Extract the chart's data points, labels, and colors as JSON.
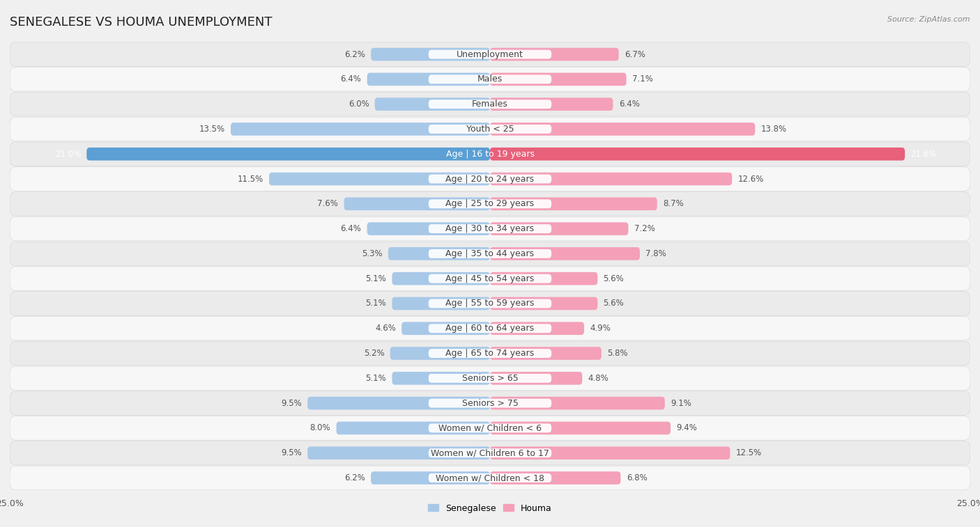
{
  "title": "SENEGALESE VS HOUMA UNEMPLOYMENT",
  "source": "Source: ZipAtlas.com",
  "categories": [
    "Unemployment",
    "Males",
    "Females",
    "Youth < 25",
    "Age | 16 to 19 years",
    "Age | 20 to 24 years",
    "Age | 25 to 29 years",
    "Age | 30 to 34 years",
    "Age | 35 to 44 years",
    "Age | 45 to 54 years",
    "Age | 55 to 59 years",
    "Age | 60 to 64 years",
    "Age | 65 to 74 years",
    "Seniors > 65",
    "Seniors > 75",
    "Women w/ Children < 6",
    "Women w/ Children 6 to 17",
    "Women w/ Children < 18"
  ],
  "senegalese": [
    6.2,
    6.4,
    6.0,
    13.5,
    21.0,
    11.5,
    7.6,
    6.4,
    5.3,
    5.1,
    5.1,
    4.6,
    5.2,
    5.1,
    9.5,
    8.0,
    9.5,
    6.2
  ],
  "houma": [
    6.7,
    7.1,
    6.4,
    13.8,
    21.6,
    12.6,
    8.7,
    7.2,
    7.8,
    5.6,
    5.6,
    4.9,
    5.8,
    4.8,
    9.1,
    9.4,
    12.5,
    6.8
  ],
  "senegalese_color": "#a8c8e8",
  "houma_color": "#f4a0b8",
  "highlight_senegalese_color": "#5b9fd4",
  "highlight_houma_color": "#e8607a",
  "row_even_color": "#ebebeb",
  "row_odd_color": "#f7f7f7",
  "bg_color": "#f0f0f0",
  "xlim": 25.0,
  "bar_height": 0.52,
  "title_fontsize": 13,
  "label_fontsize": 9,
  "value_fontsize": 8.5,
  "legend_fontsize": 9,
  "source_fontsize": 8
}
